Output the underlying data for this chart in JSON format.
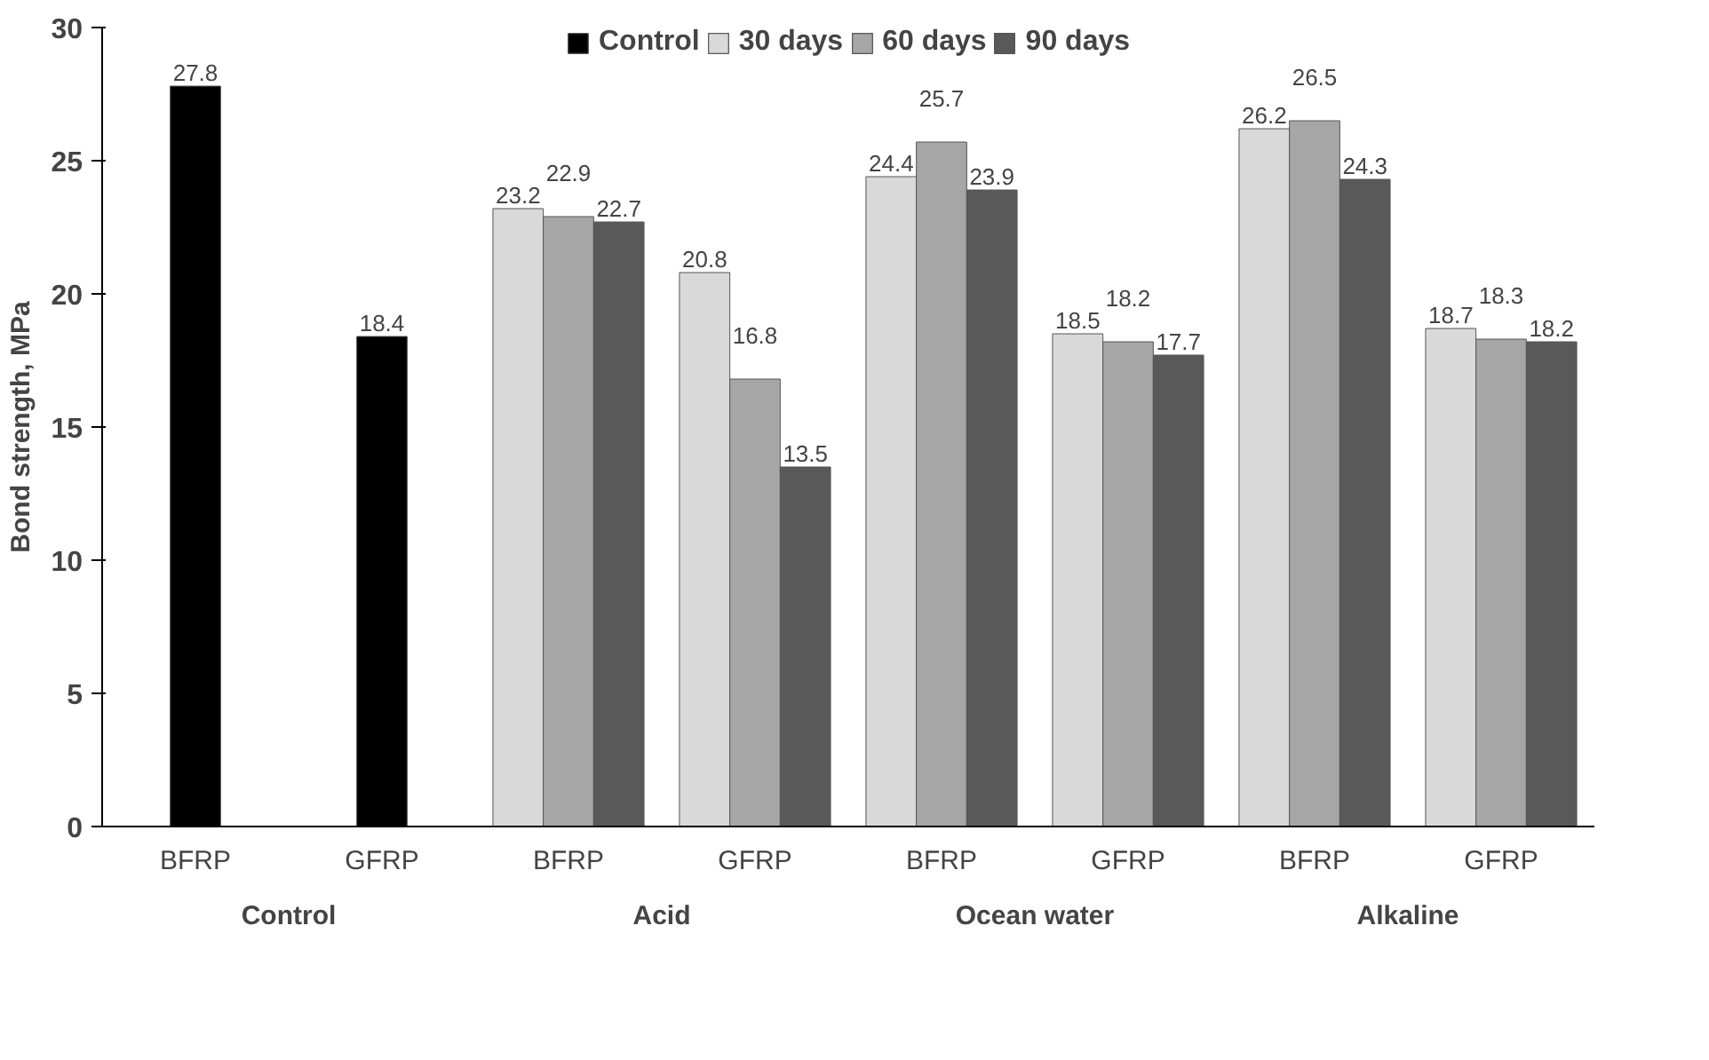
{
  "chart_data": {
    "type": "bar",
    "ylabel": "Bond strength, MPa",
    "categories": [
      "BFRP",
      "GFRP",
      "BFRP",
      "GFRP",
      "BFRP",
      "GFRP",
      "BFRP",
      "GFRP"
    ],
    "annotations": [
      "Control",
      "Acid",
      "Ocean water",
      "Alkaline"
    ],
    "series": [
      {
        "name": "Control",
        "color": "#000000",
        "values": [
          27.8,
          18.4,
          null,
          null,
          null,
          null,
          null,
          null
        ]
      },
      {
        "name": "30 days",
        "color": "#d9d9d9",
        "values": [
          null,
          null,
          23.2,
          20.8,
          24.4,
          18.5,
          26.2,
          18.7
        ]
      },
      {
        "name": "60 days",
        "color": "#a6a6a6",
        "values": [
          null,
          null,
          22.9,
          16.8,
          25.7,
          18.2,
          26.5,
          18.3
        ]
      },
      {
        "name": "90 days",
        "color": "#595959",
        "values": [
          null,
          null,
          22.7,
          13.5,
          23.9,
          17.7,
          24.3,
          18.2
        ]
      }
    ],
    "ylim": [
      0,
      30
    ],
    "yticks": [
      0,
      5,
      10,
      15,
      20,
      25,
      30
    ],
    "data_labels": true,
    "legend": "top"
  }
}
